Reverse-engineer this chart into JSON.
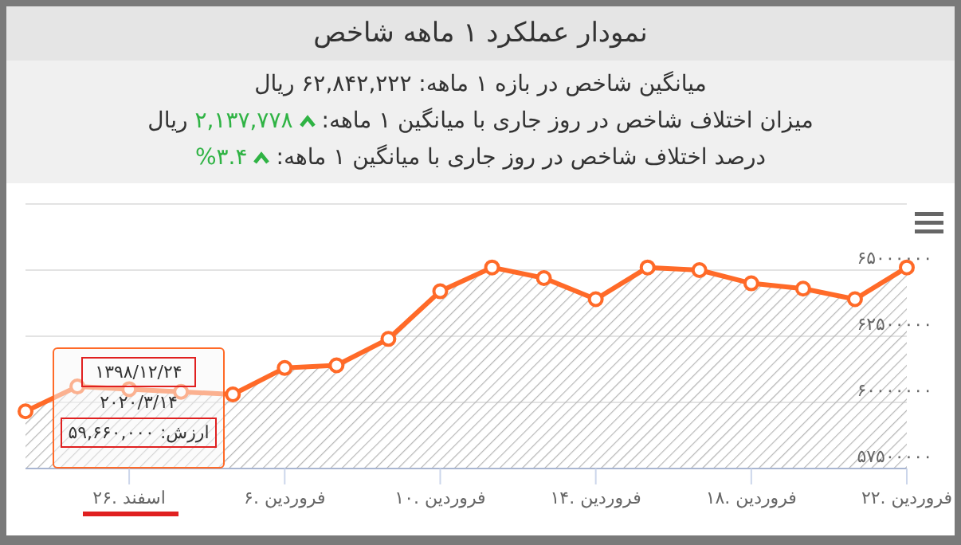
{
  "chart_data": {
    "type": "area",
    "title": "نمودار عملکرد ۱ ماهه شاخص",
    "annotations": [
      "میانگین شاخص در بازه ۱ ماهه: ۶۲,۸۴۲,۲۲۲ ریال",
      "میزان اختلاف شاخص در روز جاری با میانگین ۱ ماهه:",
      "۲,۱۳۷,۷۷۸",
      "ریال",
      "درصد اختلاف شاخص در روز جاری با میانگین ۱ ماهه:",
      "%۳.۴",
      "۱۳۹۸/۱۲/۲۴",
      "۲۰۲۰/۳/۱۴",
      "ارزش: ۵۹,۶۶۰,۰۰۰"
    ],
    "categories": [
      null,
      null,
      "۲۶. اسفند",
      null,
      null,
      "۶. فروردین",
      null,
      null,
      "۱۰. فروردین",
      null,
      null,
      "۱۴. فروردین",
      null,
      null,
      "۱۸. فروردین",
      null,
      null,
      "۲۲. فروردین"
    ],
    "series": [
      {
        "color": "#ff6a28",
        "values": [
          59660000,
          60600000,
          60500000,
          60400000,
          60300000,
          61300000,
          61400000,
          62400000,
          64200000,
          65100000,
          64700000,
          63900000,
          65100000,
          65000000,
          64500000,
          64300000,
          63900000,
          65100000
        ]
      }
    ],
    "ylim": [
      57500000,
      67500000
    ],
    "yticks": [
      {
        "value": 57500000,
        "label": "۵۷۵۰۰۰۰۰"
      },
      {
        "value": 60000000,
        "label": "۶۰۰۰۰۰۰۰"
      },
      {
        "value": 62500000,
        "label": "۶۲۵۰۰۰۰۰"
      },
      {
        "value": 65000000,
        "label": "۶۵۰۰۰۰۰۰"
      },
      {
        "value": 67500000,
        "label": null
      }
    ],
    "grid": "y",
    "marker": "circle",
    "legend": false
  }
}
